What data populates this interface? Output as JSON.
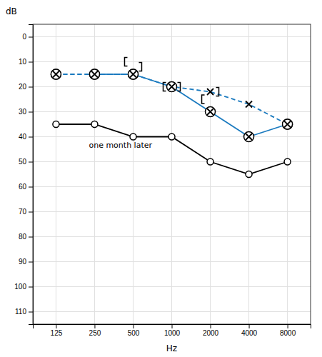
{
  "chart_data": {
    "type": "line",
    "xlabel": "Hz",
    "ylabel": "dB",
    "annotation": "one month later",
    "categories": [
      "125",
      "250",
      "500",
      "1000",
      "2000",
      "4000",
      "8000"
    ],
    "series": [
      {
        "type": "line",
        "color": "#1a7abf",
        "line_style": "dashed",
        "marker": [
          "circled-x",
          "circled-x",
          "circled-x",
          "x",
          "x",
          "x",
          "circled-x"
        ],
        "values": [
          15,
          15,
          15,
          20,
          22,
          27,
          35
        ]
      },
      {
        "type": "line",
        "color": "#1a7abf",
        "line_style": [
          "dashed",
          "dashed",
          "solid",
          "solid",
          "solid",
          "solid"
        ],
        "marker": "circled-x",
        "values": [
          15,
          15,
          15,
          20,
          30,
          40,
          35
        ]
      },
      {
        "type": "line",
        "color": "#000000",
        "line_style": "solid",
        "marker": "circle",
        "values": [
          35,
          35,
          40,
          40,
          50,
          55,
          50
        ]
      },
      {
        "type": "scatter",
        "color": "#000000",
        "marker": "bracket-left",
        "values": [
          null,
          null,
          10,
          20,
          25,
          null,
          null
        ]
      },
      {
        "type": "scatter",
        "color": "#000000",
        "marker": "bracket-right",
        "values": [
          null,
          null,
          12,
          20,
          22,
          null,
          null
        ]
      }
    ],
    "ylim": [
      115,
      -5
    ],
    "yticks": [
      0,
      10,
      20,
      30,
      40,
      50,
      60,
      70,
      80,
      90,
      100,
      110
    ],
    "grid": true
  }
}
